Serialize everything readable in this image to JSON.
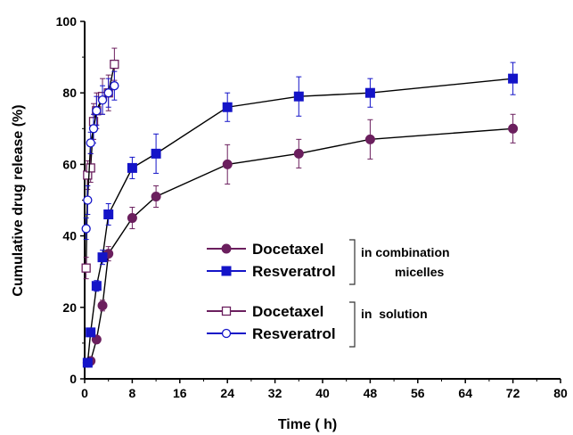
{
  "chart_data": {
    "type": "line",
    "xlabel": "Time ( h)",
    "ylabel": "Cumulative drug release (%)",
    "xlim": [
      0,
      80
    ],
    "ylim": [
      0,
      100
    ],
    "xticks": [
      "0",
      "8",
      "16",
      "24",
      "32",
      "40",
      "48",
      "56",
      "64",
      "72",
      "80"
    ],
    "yticks": [
      "0",
      "20",
      "40",
      "60",
      "80",
      "100"
    ],
    "grid": false,
    "legend_position": "center",
    "legend_groups": [
      "in combination micelles",
      "in  solution"
    ],
    "series": [
      {
        "name": "Docetaxel",
        "group": "in combination micelles",
        "marker": "filled-circle",
        "color": "#6b1f5e",
        "x": [
          0.5,
          1,
          2,
          3,
          4,
          8,
          12,
          24,
          36,
          48,
          72
        ],
        "y": [
          4.5,
          5,
          11,
          20.5,
          35,
          45,
          51,
          60,
          63,
          67,
          70
        ],
        "err": [
          0.5,
          0.5,
          1,
          1.5,
          2,
          3,
          3,
          5.5,
          4,
          5.5,
          4
        ]
      },
      {
        "name": "Resveratrol",
        "group": "in combination micelles",
        "marker": "filled-square",
        "color": "#1414c8",
        "x": [
          0.5,
          1,
          2,
          3,
          4,
          8,
          12,
          24,
          36,
          48,
          72
        ],
        "y": [
          4.5,
          13,
          26,
          34,
          46,
          59,
          63,
          76,
          79,
          80,
          84
        ],
        "err": [
          0.5,
          1,
          1.5,
          2,
          3,
          3,
          5.5,
          4,
          5.5,
          4,
          4.5
        ]
      },
      {
        "name": "Docetaxel",
        "group": "in  solution",
        "marker": "open-square",
        "color": "#6b1f5e",
        "x": [
          0.25,
          0.5,
          1,
          1.5,
          2,
          3,
          4,
          5
        ],
        "y": [
          31,
          57,
          59,
          72,
          75,
          79,
          80,
          88
        ],
        "err": [
          3,
          4,
          4,
          5,
          5,
          5,
          5,
          4.5
        ]
      },
      {
        "name": "Resveratrol",
        "group": "in  solution",
        "marker": "open-circle",
        "color": "#1414c8",
        "x": [
          0.25,
          0.5,
          1,
          1.5,
          2,
          3,
          4,
          5
        ],
        "y": [
          42,
          50,
          66,
          70,
          75,
          78,
          80,
          82
        ],
        "err": [
          3,
          4,
          3,
          4,
          4,
          4,
          4,
          4
        ]
      }
    ]
  }
}
